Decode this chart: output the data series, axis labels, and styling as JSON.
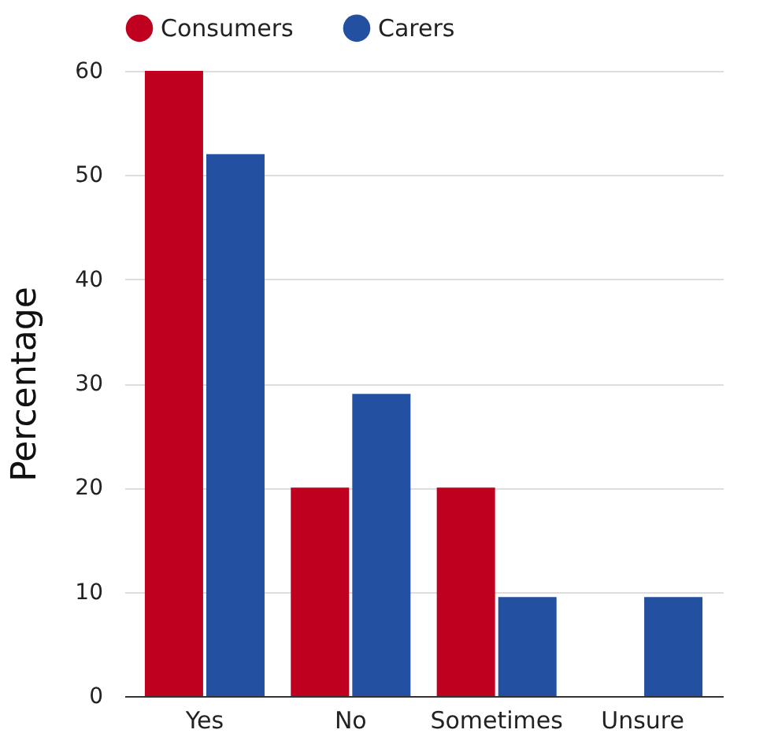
{
  "chart_data": {
    "type": "bar",
    "ylabel": "Percentage",
    "categories": [
      "Yes",
      "No",
      "Sometimes",
      "Unsure"
    ],
    "series": [
      {
        "name": "Consumers",
        "color": "#c0001f",
        "values": [
          60,
          20,
          20,
          0
        ]
      },
      {
        "name": "Carers",
        "color": "#2350a0",
        "values": [
          52,
          29,
          9.5,
          9.5
        ]
      }
    ],
    "ylim": [
      0,
      60
    ],
    "yticks": [
      0,
      10,
      20,
      30,
      40,
      50,
      60
    ],
    "grid": "y",
    "legend": "top"
  }
}
